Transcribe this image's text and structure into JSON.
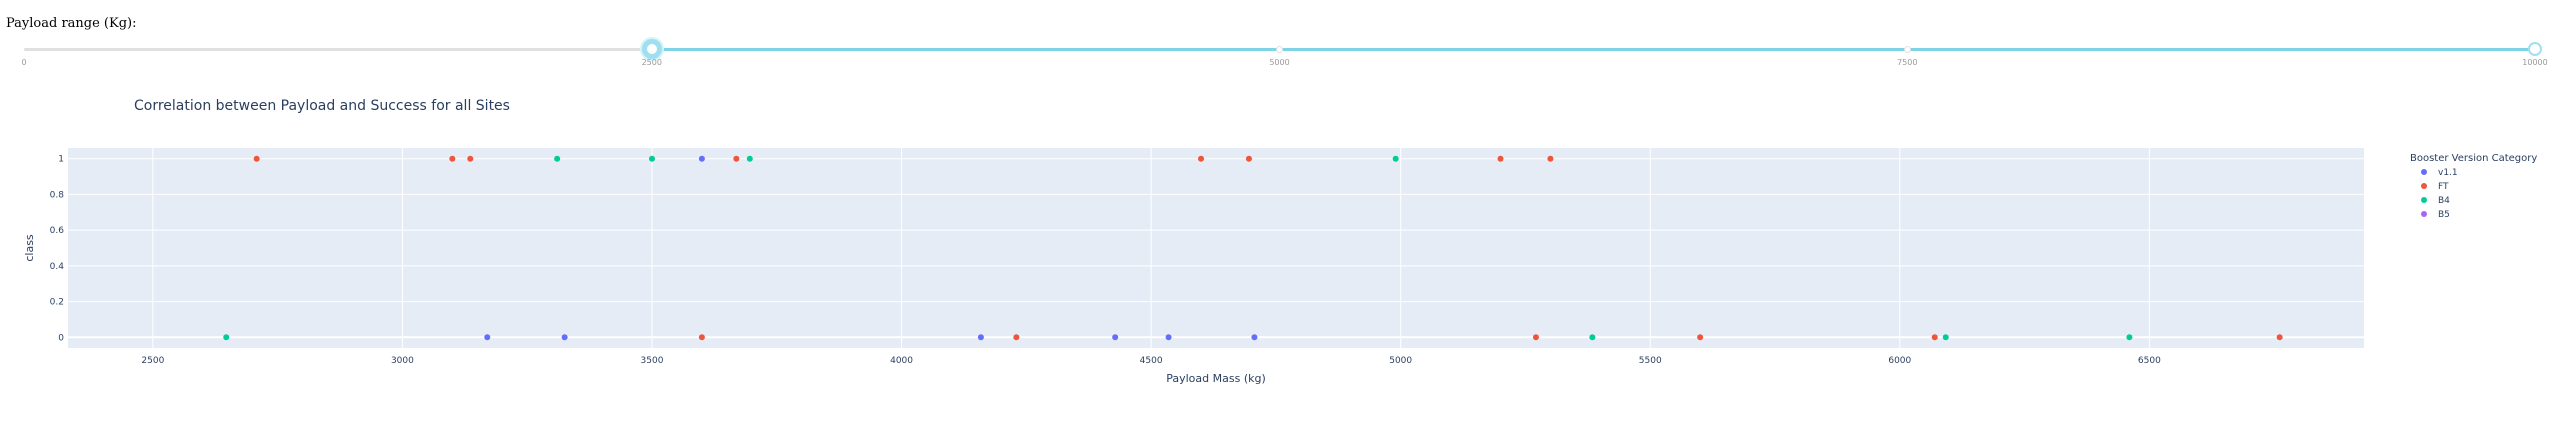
{
  "range_label": "Payload range (Kg):",
  "slider": {
    "min": 0,
    "max": 10000,
    "selected_low": 2500,
    "selected_high": 10000,
    "marks": [
      "0",
      "2500",
      "5000",
      "7500",
      "10000"
    ],
    "track_color": "#7fd3e6"
  },
  "chart_data": {
    "type": "scatter",
    "title": "Correlation between Payload and Success for all Sites",
    "xlabel": "Payload Mass (kg)",
    "ylabel": "class",
    "xlim": [
      2330,
      6930
    ],
    "ylim": [
      -0.06,
      1.06
    ],
    "x_ticks": [
      2500,
      3000,
      3500,
      4000,
      4500,
      5000,
      5500,
      6000,
      6500
    ],
    "x_tick_labels": [
      "2500",
      "3000",
      "3500",
      "4000",
      "4500",
      "5000",
      "5500",
      "6000",
      "6500"
    ],
    "y_ticks": [
      0,
      0.2,
      0.4,
      0.6,
      0.8,
      1
    ],
    "y_tick_labels": [
      "0",
      "0.2",
      "0.4",
      "0.6",
      "0.8",
      "1"
    ],
    "grid": true,
    "legend_title": "Booster Version Category",
    "legend_position": "right",
    "background": "#e5ecf6",
    "series": [
      {
        "name": "v1.1",
        "color": "#636efa",
        "x": [
          3170,
          3325,
          3600,
          4159,
          4428,
          4535,
          4707
        ],
        "y": [
          0,
          0,
          1,
          0,
          0,
          0,
          0
        ]
      },
      {
        "name": "FT",
        "color": "#ef553b",
        "x": [
          2708,
          3100,
          3136,
          3600,
          3669,
          4230,
          4600,
          4696,
          5200,
          5300,
          5271,
          5600,
          6070,
          6761
        ],
        "y": [
          1,
          1,
          1,
          0,
          1,
          0,
          1,
          1,
          1,
          1,
          0,
          0,
          0,
          0
        ]
      },
      {
        "name": "B4",
        "color": "#00cc96",
        "x": [
          2647,
          3310,
          3500,
          3696,
          4990,
          5384,
          6092,
          6460
        ],
        "y": [
          0,
          1,
          1,
          1,
          1,
          0,
          0,
          0
        ]
      },
      {
        "name": "B5",
        "color": "#ab63fa",
        "x": [],
        "y": []
      }
    ]
  }
}
